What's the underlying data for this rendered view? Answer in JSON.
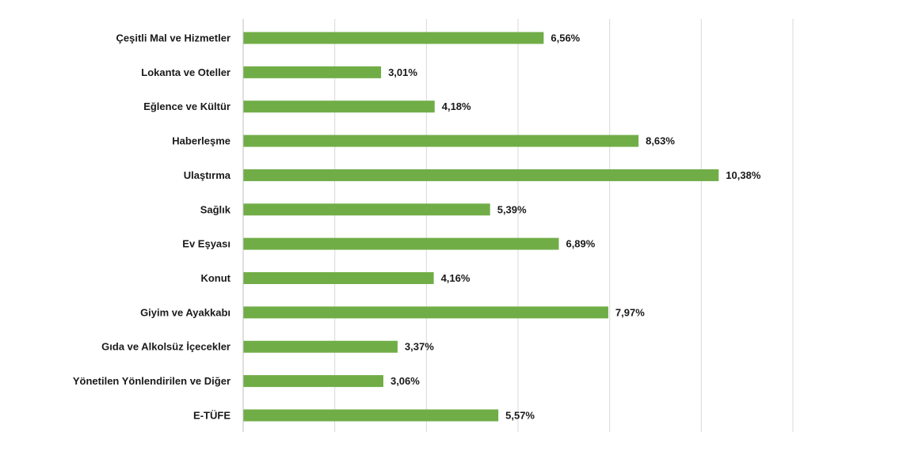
{
  "chart_data": {
    "type": "bar",
    "orientation": "horizontal",
    "categories": [
      "Çeşitli Mal ve Hizmetler",
      "Lokanta ve Oteller",
      "Eğlence ve Kültür",
      "Haberleşme",
      "Ulaştırma",
      "Sağlık",
      "Ev Eşyası",
      "Konut",
      "Giyim ve Ayakkabı",
      "Gıda ve Alkolsüz İçecekler",
      "Yönetilen Yönlendirilen ve Diğer",
      "E-TÜFE"
    ],
    "values": [
      6.56,
      3.01,
      4.18,
      8.63,
      10.38,
      5.39,
      6.89,
      4.16,
      7.97,
      3.37,
      3.06,
      5.57
    ],
    "value_labels": [
      "6,56%",
      "3,01%",
      "4,18%",
      "8,63%",
      "10,38%",
      "5,39%",
      "6,89%",
      "4,16%",
      "7,97%",
      "3,37%",
      "3,06%",
      "5,57%"
    ],
    "xlim": [
      0,
      12
    ],
    "grid": true,
    "bar_color": "#70ad47",
    "title": "",
    "xlabel": "",
    "ylabel": ""
  }
}
